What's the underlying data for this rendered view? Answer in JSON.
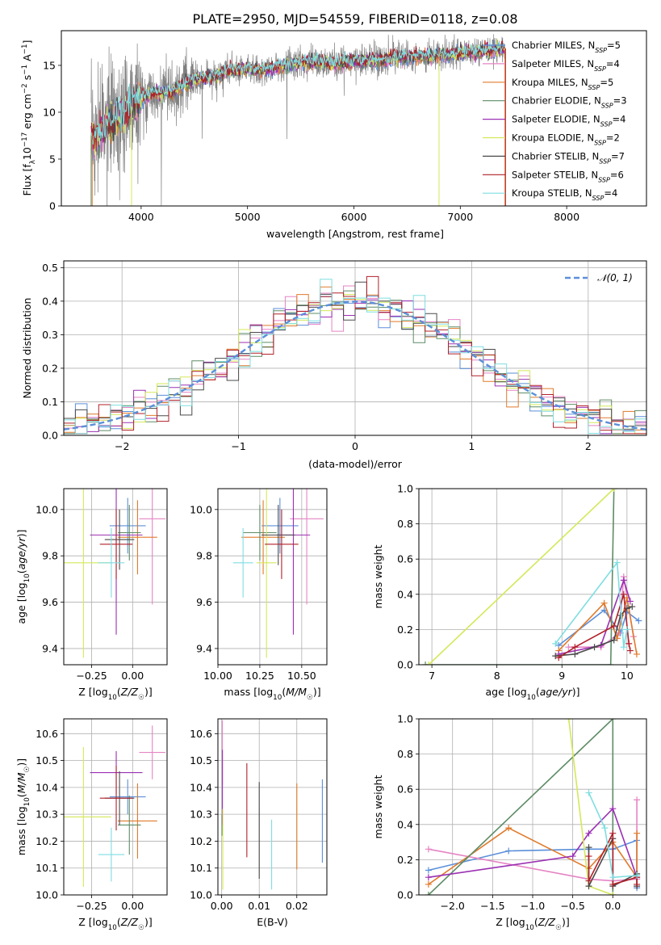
{
  "figure": {
    "title": "PLATE=2950, MJD=54559, FIBERID=0118, z=0.08",
    "models": [
      {
        "name": "Chabrier MILES, N",
        "sub": "SSP",
        "n": "=5",
        "color": "#5b8fd9"
      },
      {
        "name": "Salpeter MILES, N",
        "sub": "SSP",
        "n": "=4",
        "color": "#e584c4"
      },
      {
        "name": "Kroupa MILES, N",
        "sub": "SSP",
        "n": "=5",
        "color": "#e07a2b"
      },
      {
        "name": "Chabrier ELODIE, N",
        "sub": "SSP",
        "n": "=3",
        "color": "#5e8c66"
      },
      {
        "name": "Salpeter ELODIE, N",
        "sub": "SSP",
        "n": "=4",
        "color": "#9b30b3"
      },
      {
        "name": "Kroupa ELODIE, N",
        "sub": "SSP",
        "n": "=2",
        "color": "#d4e85a"
      },
      {
        "name": "Chabrier STELIB, N",
        "sub": "SSP",
        "n": "=7",
        "color": "#4a4a4a"
      },
      {
        "name": "Salpeter STELIB, N",
        "sub": "SSP",
        "n": "=6",
        "color": "#b0202a"
      },
      {
        "name": "Kroupa STELIB, N",
        "sub": "SSP",
        "n": "=4",
        "color": "#7fdde0"
      }
    ],
    "data_color": "#808080"
  },
  "chart_data": [
    {
      "type": "line",
      "id": "spectrum",
      "xlabel": "wavelength [Angstrom, rest frame]",
      "ylabel_parts": [
        "Flux [f",
        "λ",
        "10",
        "−17",
        " erg cm",
        "−2",
        " s",
        "−1",
        " A",
        "−1",
        "]"
      ],
      "xlim": [
        3250,
        8750
      ],
      "ylim": [
        0,
        18.7
      ],
      "xticks": [
        4000,
        5000,
        6000,
        7000,
        8000
      ],
      "yticks": [
        0,
        5,
        10,
        15
      ],
      "anchors": [
        [
          3530,
          7.5
        ],
        [
          3600,
          7.5
        ],
        [
          3700,
          9
        ],
        [
          3800,
          9.5
        ],
        [
          3900,
          10.5
        ],
        [
          4000,
          11.5
        ],
        [
          4100,
          12
        ],
        [
          4200,
          12.2
        ],
        [
          4300,
          12.1
        ],
        [
          4400,
          13.0
        ],
        [
          4500,
          13.5
        ],
        [
          4600,
          13.7
        ],
        [
          4700,
          13.8
        ],
        [
          4800,
          14.3
        ],
        [
          4900,
          14.5
        ],
        [
          5000,
          14.6
        ],
        [
          5100,
          14.4
        ],
        [
          5200,
          14.6
        ],
        [
          5300,
          15.0
        ],
        [
          5400,
          15.1
        ],
        [
          5500,
          15.3
        ],
        [
          5600,
          15.4
        ],
        [
          5700,
          15.3
        ],
        [
          5800,
          15.1
        ],
        [
          5900,
          15.3
        ],
        [
          6000,
          15.4
        ],
        [
          6100,
          15.4
        ],
        [
          6200,
          15.5
        ],
        [
          6300,
          15.6
        ],
        [
          6400,
          15.8
        ],
        [
          6500,
          15.9
        ],
        [
          6600,
          15.9
        ],
        [
          6700,
          16.0
        ],
        [
          6800,
          16.0
        ],
        [
          6900,
          16.1
        ],
        [
          7000,
          16.3
        ],
        [
          7100,
          16.4
        ],
        [
          7200,
          16.5
        ],
        [
          7300,
          16.6
        ],
        [
          7400,
          16.8
        ]
      ]
    },
    {
      "type": "histogram",
      "id": "residuals",
      "xlabel": "(data-model)/error",
      "ylabel": "Normed distribution",
      "xlim": [
        -2.5,
        2.5
      ],
      "ylim": [
        0,
        0.52
      ],
      "xticks": [
        -2,
        -1,
        0,
        1,
        2
      ],
      "yticks": [
        0.0,
        0.1,
        0.2,
        0.3,
        0.4,
        0.5
      ],
      "bin_edges_start": -2.5,
      "bin_width": 0.1,
      "bins": 50,
      "normal_label": "𝒩(0, 1)",
      "normal_color": "#5b8fd9"
    },
    {
      "type": "scatter",
      "id": "age-vs-Z",
      "xlabel": "Z [log10(Z/Z☉)]",
      "ylabel": "age [log10(age/yr)]",
      "xlim": [
        -0.42,
        0.21
      ],
      "ylim": [
        9.33,
        10.09
      ],
      "xticks": [
        -0.25,
        0.0
      ],
      "yticks": [
        9.4,
        9.6,
        9.8,
        10.0
      ],
      "points": [
        {
          "x": -0.03,
          "y": 9.93,
          "xerr": 0.11,
          "yerr": 0.12
        },
        {
          "x": 0.12,
          "y": 9.96,
          "xerr": 0.08,
          "yerr": 0.37
        },
        {
          "x": 0.03,
          "y": 9.88,
          "xerr": 0.12,
          "yerr": 0.16
        },
        {
          "x": -0.02,
          "y": 9.9,
          "xerr": 0.07,
          "yerr": 0.12
        },
        {
          "x": -0.1,
          "y": 9.89,
          "xerr": 0.16,
          "yerr": 0.43
        },
        {
          "x": -0.3,
          "y": 9.77,
          "xerr": 0.17,
          "yerr": 0.41
        },
        {
          "x": -0.08,
          "y": 9.87,
          "xerr": 0.09,
          "yerr": 0.13
        },
        {
          "x": -0.1,
          "y": 9.85,
          "xerr": 0.1,
          "yerr": 0.15
        },
        {
          "x": -0.13,
          "y": 9.77,
          "xerr": 0.08,
          "yerr": 0.15
        }
      ]
    },
    {
      "type": "scatter",
      "id": "age-vs-mass",
      "xlabel": "mass [log10(M/M☉)]",
      "ylabel": "",
      "xlim": [
        10.0,
        10.65
      ],
      "ylim": [
        9.33,
        10.09
      ],
      "xticks": [
        10.0,
        10.25,
        10.5
      ],
      "yticks": [
        9.4,
        9.6,
        9.8,
        10.0
      ],
      "points": [
        {
          "x": 10.37,
          "y": 9.93,
          "xerr": 0.11,
          "yerr": 0.12
        },
        {
          "x": 10.53,
          "y": 9.96,
          "xerr": 0.1,
          "yerr": 0.37
        },
        {
          "x": 10.27,
          "y": 9.88,
          "xerr": 0.13,
          "yerr": 0.16
        },
        {
          "x": 10.25,
          "y": 9.9,
          "xerr": 0.1,
          "yerr": 0.12
        },
        {
          "x": 10.45,
          "y": 9.89,
          "xerr": 0.1,
          "yerr": 0.43
        },
        {
          "x": 10.29,
          "y": 9.77,
          "xerr": 0.06,
          "yerr": 0.41
        },
        {
          "x": 10.36,
          "y": 9.89,
          "xerr": 0.1,
          "yerr": 0.13
        },
        {
          "x": 10.38,
          "y": 9.85,
          "xerr": 0.1,
          "yerr": 0.15
        },
        {
          "x": 10.15,
          "y": 9.77,
          "xerr": 0.06,
          "yerr": 0.15
        }
      ]
    },
    {
      "type": "line",
      "id": "mass-weight-vs-age",
      "xlabel": "age [log10(age/yr)]",
      "ylabel": "mass weight",
      "xlim": [
        6.8,
        10.3
      ],
      "ylim": [
        0,
        1.0
      ],
      "xticks": [
        7,
        8,
        9,
        10
      ],
      "yticks": [
        0.0,
        0.2,
        0.4,
        0.6,
        0.8,
        1.0
      ],
      "series": [
        {
          "points": [
            [
              8.95,
              0.11
            ],
            [
              9.65,
              0.31
            ],
            [
              9.9,
              0.18
            ],
            [
              10.0,
              0.3
            ],
            [
              10.18,
              0.25
            ]
          ]
        },
        {
          "points": [
            [
              9.1,
              0.1
            ],
            [
              9.6,
              0.1
            ],
            [
              9.88,
              0.18
            ],
            [
              9.95,
              0.5
            ],
            [
              10.1,
              0.16
            ]
          ]
        },
        {
          "points": [
            [
              8.95,
              0.08
            ],
            [
              9.65,
              0.35
            ],
            [
              9.85,
              0.15
            ],
            [
              10.0,
              0.38
            ],
            [
              10.15,
              0.06
            ]
          ]
        },
        {
          "points": [
            [
              6.9,
              0.0
            ],
            [
              9.75,
              0.0
            ],
            [
              9.8,
              1.0
            ]
          ]
        },
        {
          "points": [
            [
              8.95,
              0.06
            ],
            [
              9.6,
              0.11
            ],
            [
              9.95,
              0.48
            ],
            [
              10.05,
              0.36
            ]
          ]
        },
        {
          "points": [
            [
              6.95,
              0.0
            ],
            [
              9.8,
              1.0
            ]
          ]
        },
        {
          "points": [
            [
              8.9,
              0.05
            ],
            [
              9.2,
              0.06
            ],
            [
              9.5,
              0.1
            ],
            [
              9.8,
              0.14
            ],
            [
              9.9,
              0.28
            ],
            [
              10.0,
              0.32
            ],
            [
              10.08,
              0.33
            ]
          ]
        },
        {
          "points": [
            [
              8.95,
              0.04
            ],
            [
              9.2,
              0.1
            ],
            [
              9.8,
              0.22
            ],
            [
              9.95,
              0.4
            ],
            [
              10.03,
              0.12
            ],
            [
              10.05,
              0.08
            ]
          ]
        },
        {
          "points": [
            [
              8.9,
              0.12
            ],
            [
              9.85,
              0.58
            ],
            [
              9.95,
              0.1
            ],
            [
              10.0,
              0.2
            ]
          ]
        }
      ]
    },
    {
      "type": "scatter",
      "id": "mass-vs-Z",
      "xlabel": "Z [log10(Z/Z☉)]",
      "ylabel": "mass [log10(M/M☉)]",
      "xlim": [
        -0.42,
        0.21
      ],
      "ylim": [
        10.0,
        10.655
      ],
      "xticks": [
        -0.25,
        0.0
      ],
      "yticks": [
        10.0,
        10.1,
        10.2,
        10.3,
        10.4,
        10.5,
        10.6
      ],
      "points": [
        {
          "x": -0.03,
          "y": 10.365,
          "xerr": 0.11,
          "yerr": 0.065
        },
        {
          "x": 0.12,
          "y": 10.53,
          "xerr": 0.08,
          "yerr": 0.1
        },
        {
          "x": 0.03,
          "y": 10.275,
          "xerr": 0.12,
          "yerr": 0.14
        },
        {
          "x": -0.02,
          "y": 10.26,
          "xerr": 0.07,
          "yerr": 0.11
        },
        {
          "x": -0.1,
          "y": 10.455,
          "xerr": 0.16,
          "yerr": 0.08
        },
        {
          "x": -0.3,
          "y": 10.29,
          "xerr": 0.17,
          "yerr": 0.26
        },
        {
          "x": -0.08,
          "y": 10.36,
          "xerr": 0.09,
          "yerr": 0.1
        },
        {
          "x": -0.1,
          "y": 10.36,
          "xerr": 0.1,
          "yerr": 0.12
        },
        {
          "x": -0.13,
          "y": 10.15,
          "xerr": 0.08,
          "yerr": 0.1
        }
      ]
    },
    {
      "type": "scatter",
      "id": "mass-vs-EBV",
      "xlabel": "E(B-V)",
      "ylabel": "",
      "xlim": [
        -0.001,
        0.028
      ],
      "ylim": [
        10.0,
        10.655
      ],
      "xticks": [
        0.0,
        0.01,
        0.02
      ],
      "yticks": [
        10.0,
        10.1,
        10.2,
        10.3,
        10.4,
        10.5,
        10.6
      ],
      "points": [
        {
          "x": 0.0268,
          "y": 10.275,
          "xerr": 0,
          "yerr": 0.155
        },
        {
          "x": 0.0002,
          "y": 10.53,
          "xerr": 0,
          "yerr": 0.12
        },
        {
          "x": 0.02,
          "y": 10.255,
          "xerr": 0,
          "yerr": 0.16
        },
        {
          "x": 0.0001,
          "y": 10.26,
          "xerr": 0,
          "yerr": 0.04
        },
        {
          "x": 0.0002,
          "y": 10.4,
          "xerr": 0,
          "yerr": 0.14
        },
        {
          "x": 0.0003,
          "y": 10.17,
          "xerr": 0,
          "yerr": 0.15
        },
        {
          "x": 0.01,
          "y": 10.24,
          "xerr": 0,
          "yerr": 0.18
        },
        {
          "x": 0.0067,
          "y": 10.315,
          "xerr": 0,
          "yerr": 0.175
        },
        {
          "x": 0.0133,
          "y": 10.15,
          "xerr": 0,
          "yerr": 0.13
        }
      ]
    },
    {
      "type": "line",
      "id": "mass-weight-vs-Z",
      "xlabel": "Z [log10(Z/Z☉)]",
      "ylabel": "mass weight",
      "xlim": [
        -2.42,
        0.42
      ],
      "ylim": [
        0,
        1.0
      ],
      "xticks": [
        -2.0,
        -1.5,
        -1.0,
        -0.5,
        0.0
      ],
      "yticks": [
        0.0,
        0.2,
        0.4,
        0.6,
        0.8,
        1.0
      ],
      "series": [
        {
          "points": [
            [
              -2.3,
              0.14
            ],
            [
              -1.3,
              0.25
            ],
            [
              -0.3,
              0.26
            ],
            [
              0.0,
              0.26
            ],
            [
              0.3,
              0.31
            ],
            [
              0.3,
              0.04
            ]
          ]
        },
        {
          "points": [
            [
              -2.3,
              0.26
            ],
            [
              -0.3,
              0.09
            ],
            [
              0.0,
              0.08
            ],
            [
              0.3,
              0.09
            ],
            [
              0.3,
              0.54
            ]
          ]
        },
        {
          "points": [
            [
              -2.3,
              0.06
            ],
            [
              -1.3,
              0.38
            ],
            [
              -0.3,
              0.15
            ],
            [
              0.0,
              0.3
            ],
            [
              0.3,
              0.1
            ],
            [
              0.3,
              0.35
            ]
          ]
        },
        {
          "points": [
            [
              -2.3,
              0.0
            ],
            [
              0.0,
              1.0
            ],
            [
              0.0,
              0.0
            ]
          ]
        },
        {
          "points": [
            [
              -2.3,
              0.1
            ],
            [
              -0.5,
              0.22
            ],
            [
              -0.3,
              0.35
            ],
            [
              0.0,
              0.49
            ],
            [
              0.3,
              0.1
            ]
          ]
        },
        {
          "points": [
            [
              -0.55,
              1.0
            ],
            [
              -0.3,
              0.05
            ],
            [
              0.0,
              0.0
            ]
          ]
        },
        {
          "points": [
            [
              -0.3,
              0.27
            ],
            [
              -0.3,
              0.05
            ],
            [
              0.0,
              0.32
            ],
            [
              0.0,
              0.05
            ],
            [
              0.3,
              0.12
            ],
            [
              0.3,
              0.05
            ]
          ]
        },
        {
          "points": [
            [
              -0.3,
              0.22
            ],
            [
              -0.3,
              0.08
            ],
            [
              0.0,
              0.35
            ],
            [
              0.0,
              0.06
            ],
            [
              0.3,
              0.1
            ],
            [
              0.3,
              0.06
            ]
          ]
        },
        {
          "points": [
            [
              -0.3,
              0.58
            ],
            [
              -0.1,
              0.38
            ],
            [
              0.0,
              0.1
            ],
            [
              0.3,
              0.11
            ]
          ]
        }
      ]
    }
  ]
}
